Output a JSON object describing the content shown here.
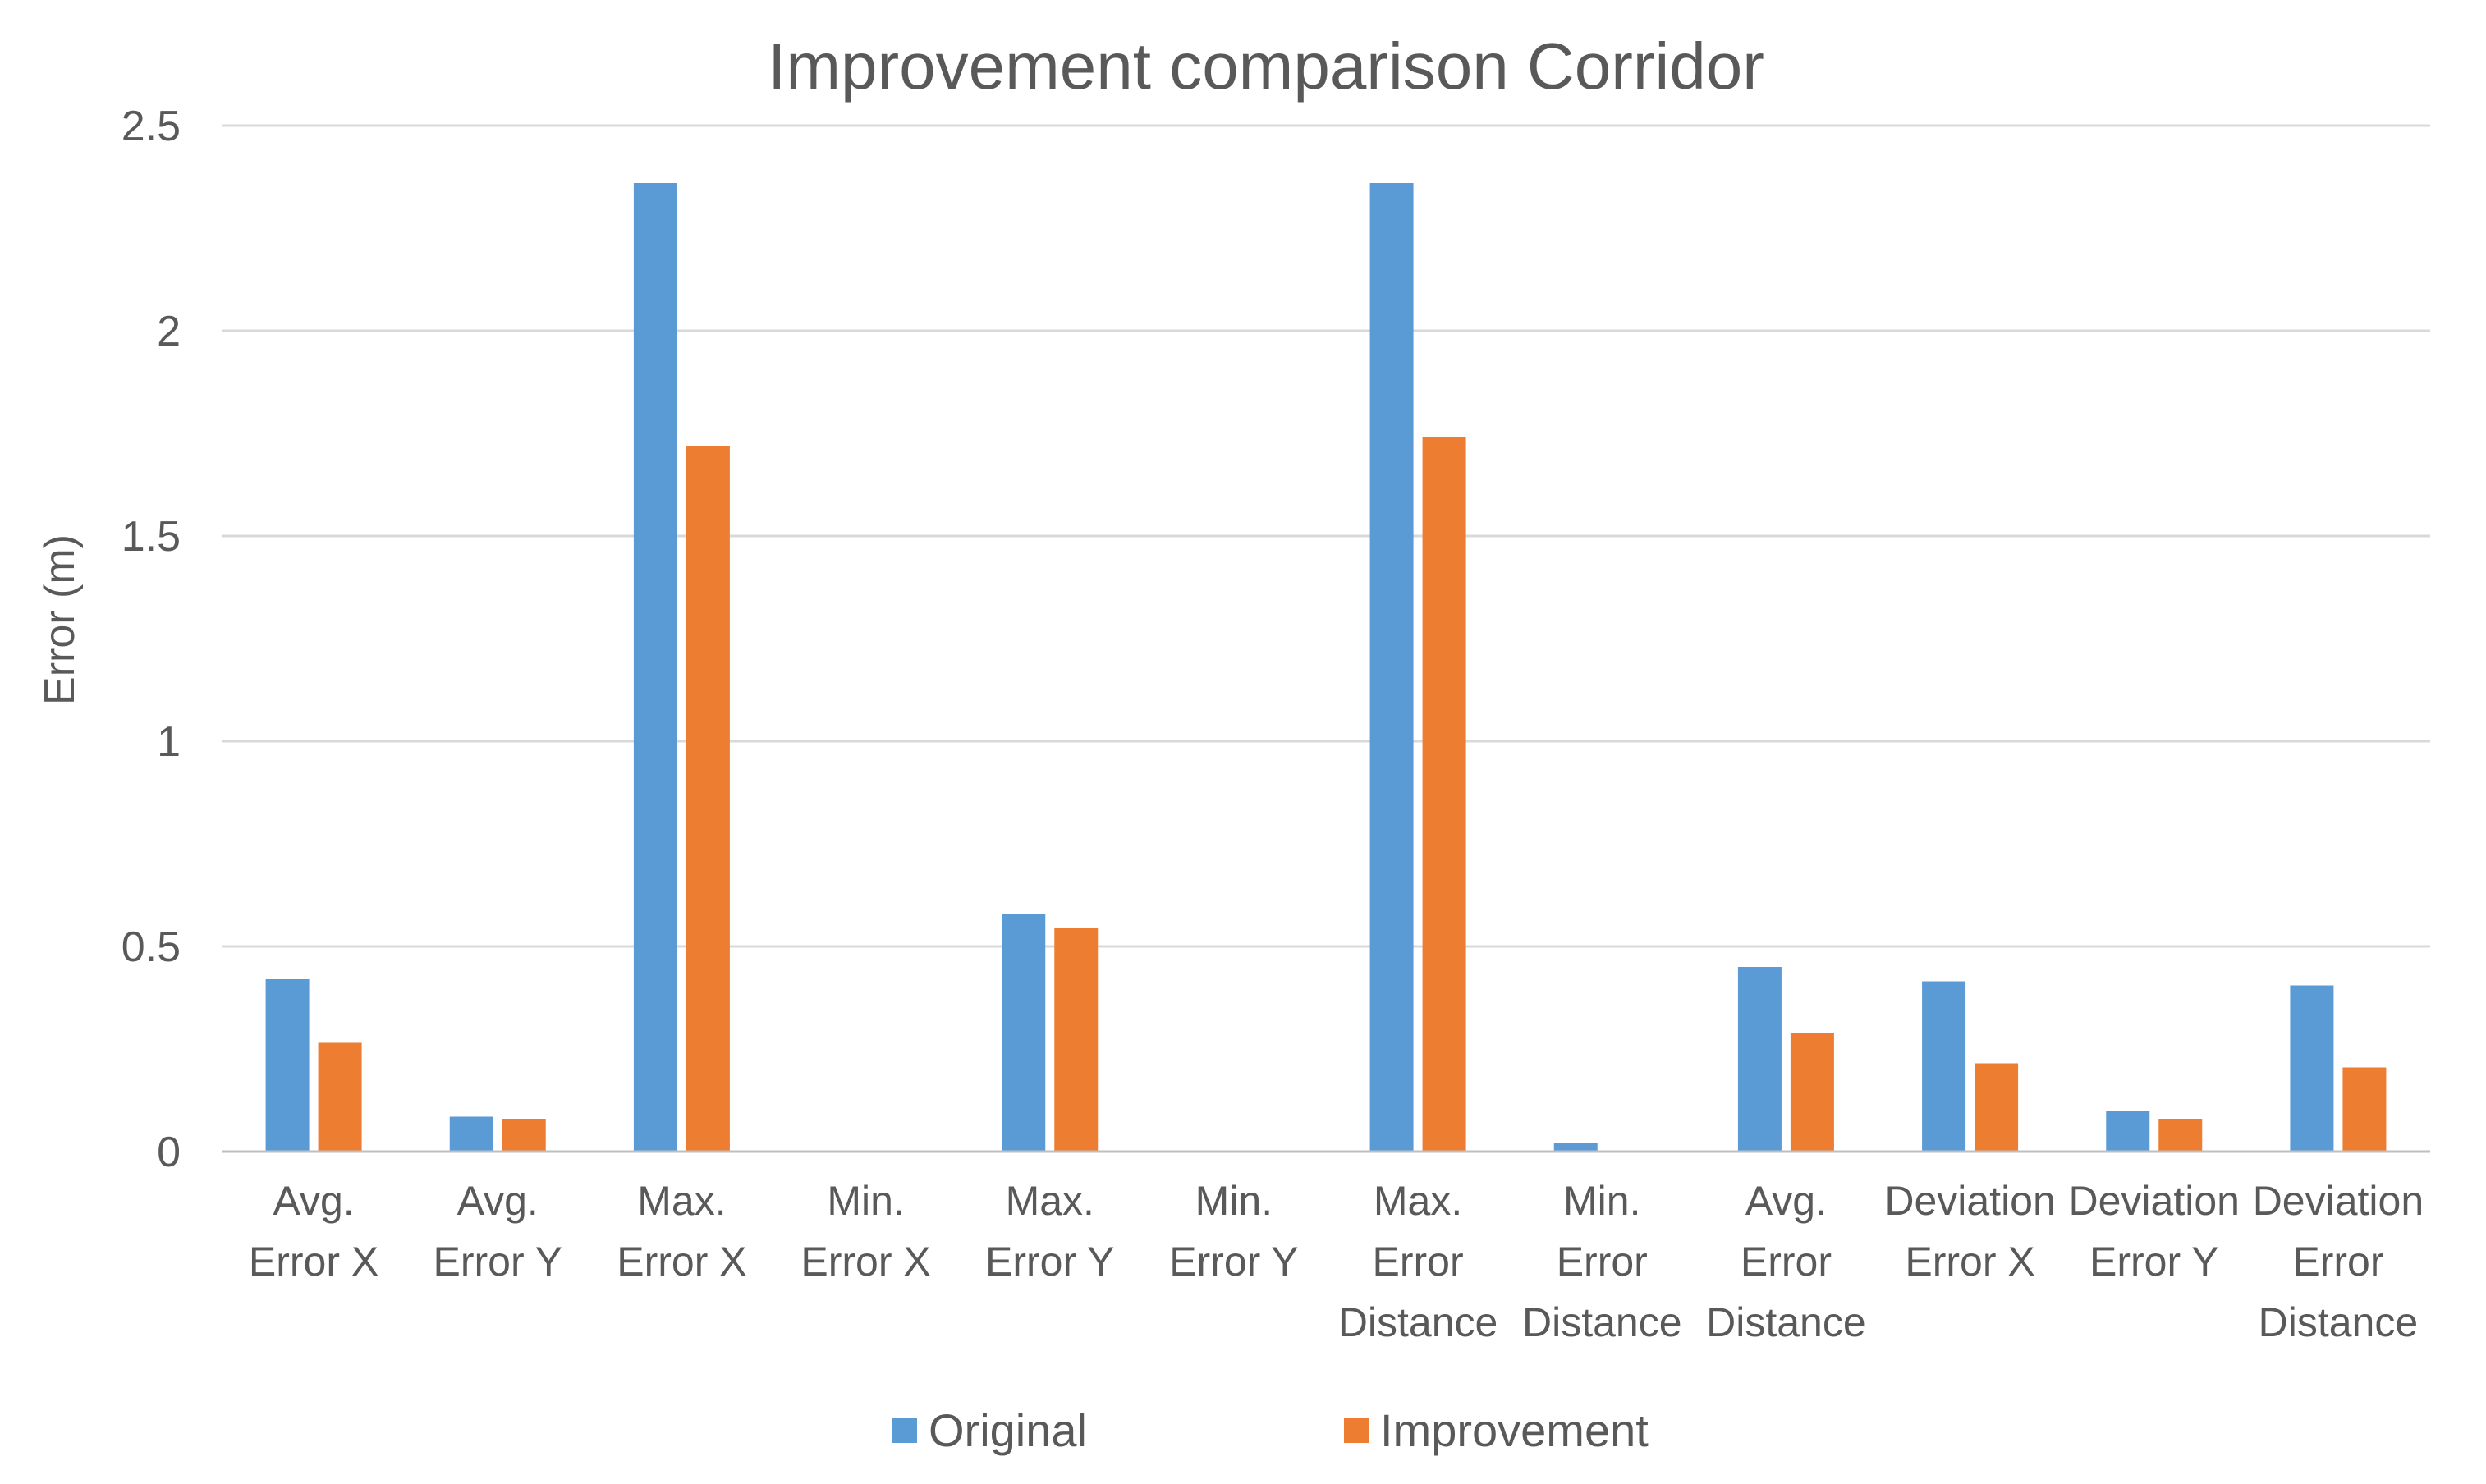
{
  "chart_data": {
    "type": "bar",
    "title": "Improvement comparison Corridor",
    "xlabel": "",
    "ylabel": "Error (m)",
    "ylim": [
      0,
      2.5
    ],
    "yticks": [
      {
        "value": 0,
        "label": "0"
      },
      {
        "value": 0.5,
        "label": "0.5"
      },
      {
        "value": 1,
        "label": "1"
      },
      {
        "value": 1.5,
        "label": "1.5"
      },
      {
        "value": 2,
        "label": "2"
      },
      {
        "value": 2.5,
        "label": "2.5"
      }
    ],
    "grid": true,
    "legend_position": "bottom",
    "categories": [
      [
        "Avg.",
        "Error X"
      ],
      [
        "Avg.",
        "Error Y"
      ],
      [
        "Max.",
        "Error X"
      ],
      [
        "Min.",
        "Error X"
      ],
      [
        "Max.",
        "Error Y"
      ],
      [
        "Min.",
        "Error Y"
      ],
      [
        "Max.",
        "Error",
        "Distance"
      ],
      [
        "Min.",
        "Error",
        "Distance"
      ],
      [
        "Avg.",
        "Error",
        "Distance"
      ],
      [
        "Deviation",
        "Error X"
      ],
      [
        "Deviation",
        "Error Y"
      ],
      [
        "Deviation",
        "Error",
        "Distance"
      ]
    ],
    "series": [
      {
        "name": "Original",
        "color": "#5B9BD5",
        "values": [
          0.42,
          0.085,
          2.36,
          0,
          0.58,
          0,
          2.36,
          0.02,
          0.45,
          0.415,
          0.1,
          0.405
        ]
      },
      {
        "name": "Improvement",
        "color": "#ED7D31",
        "values": [
          0.265,
          0.08,
          1.72,
          0,
          0.545,
          0,
          1.74,
          0,
          0.29,
          0.215,
          0.08,
          0.205
        ]
      }
    ]
  }
}
